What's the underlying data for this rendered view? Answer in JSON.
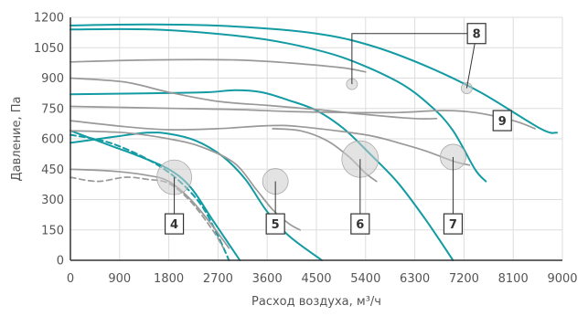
{
  "chart_data": {
    "type": "line",
    "xlabel": "Расход воздуха, м³/ч",
    "ylabel": "Давление, Па",
    "xlim": [
      0,
      9000
    ],
    "ylim": [
      0,
      1200
    ],
    "x_ticks": [
      "0",
      "900",
      "1800",
      "2700",
      "3600",
      "4500",
      "5400",
      "6300",
      "7200",
      "8100",
      "9000"
    ],
    "y_ticks": [
      "0",
      "150",
      "300",
      "450",
      "600",
      "750",
      "900",
      "1050",
      "1200"
    ],
    "grid": true,
    "colors": {
      "teal": "#139ba3",
      "gray": "#999999",
      "grid": "#dddddd",
      "axis": "#333333",
      "bubble": "#cccccc"
    },
    "series": [
      {
        "style": "teal",
        "points": [
          [
            0,
            1160
          ],
          [
            1500,
            1165
          ],
          [
            3000,
            1155
          ],
          [
            4500,
            1120
          ],
          [
            5500,
            1060
          ],
          [
            6500,
            960
          ],
          [
            7500,
            830
          ],
          [
            8600,
            650
          ],
          [
            8900,
            630
          ]
        ]
      },
      {
        "style": "teal",
        "points": [
          [
            0,
            1140
          ],
          [
            1500,
            1140
          ],
          [
            3000,
            1110
          ],
          [
            4000,
            1070
          ],
          [
            5000,
            1000
          ],
          [
            6000,
            880
          ],
          [
            6600,
            760
          ],
          [
            7000,
            640
          ],
          [
            7400,
            450
          ],
          [
            7600,
            390
          ]
        ]
      },
      {
        "style": "teal",
        "points": [
          [
            0,
            820
          ],
          [
            1500,
            825
          ],
          [
            2500,
            830
          ],
          [
            3000,
            840
          ],
          [
            3500,
            830
          ],
          [
            4000,
            790
          ],
          [
            4500,
            740
          ],
          [
            5000,
            650
          ],
          [
            5500,
            520
          ],
          [
            6000,
            380
          ],
          [
            6500,
            200
          ],
          [
            7000,
            0
          ]
        ]
      },
      {
        "style": "teal",
        "points": [
          [
            0,
            580
          ],
          [
            800,
            610
          ],
          [
            1400,
            630
          ],
          [
            1800,
            625
          ],
          [
            2300,
            590
          ],
          [
            2800,
            510
          ],
          [
            3200,
            400
          ],
          [
            3600,
            240
          ],
          [
            4000,
            120
          ],
          [
            4600,
            0
          ]
        ]
      },
      {
        "style": "teal",
        "points": [
          [
            0,
            640
          ],
          [
            300,
            610
          ],
          [
            800,
            560
          ],
          [
            1200,
            520
          ],
          [
            1800,
            450
          ],
          [
            2200,
            360
          ],
          [
            2600,
            200
          ],
          [
            3100,
            0
          ]
        ]
      },
      {
        "style": "teal",
        "dashed": true,
        "points": [
          [
            0,
            620
          ],
          [
            600,
            590
          ],
          [
            1100,
            540
          ],
          [
            1600,
            470
          ],
          [
            2000,
            390
          ],
          [
            2400,
            270
          ],
          [
            2700,
            120
          ],
          [
            2900,
            0
          ]
        ]
      },
      {
        "style": "gray",
        "points": [
          [
            0,
            980
          ],
          [
            1500,
            990
          ],
          [
            3000,
            990
          ],
          [
            4000,
            975
          ],
          [
            5000,
            950
          ],
          [
            5400,
            930
          ]
        ]
      },
      {
        "style": "gray",
        "points": [
          [
            0,
            900
          ],
          [
            1000,
            880
          ],
          [
            1800,
            830
          ],
          [
            2700,
            785
          ],
          [
            3600,
            765
          ],
          [
            4500,
            745
          ],
          [
            5400,
            720
          ],
          [
            6300,
            700
          ],
          [
            6700,
            700
          ]
        ]
      },
      {
        "style": "gray",
        "points": [
          [
            0,
            760
          ],
          [
            1000,
            755
          ],
          [
            2000,
            750
          ],
          [
            3000,
            745
          ],
          [
            4000,
            735
          ],
          [
            5000,
            730
          ],
          [
            6000,
            730
          ],
          [
            6800,
            740
          ],
          [
            7400,
            730
          ],
          [
            8100,
            690
          ],
          [
            8500,
            650
          ]
        ]
      },
      {
        "style": "gray",
        "points": [
          [
            0,
            690
          ],
          [
            1000,
            660
          ],
          [
            1800,
            645
          ],
          [
            2700,
            650
          ],
          [
            3600,
            665
          ],
          [
            4200,
            660
          ],
          [
            5400,
            620
          ],
          [
            6000,
            580
          ],
          [
            6500,
            540
          ],
          [
            7000,
            490
          ],
          [
            7300,
            470
          ]
        ]
      },
      {
        "style": "gray",
        "points": [
          [
            0,
            640
          ],
          [
            1000,
            630
          ],
          [
            1800,
            600
          ],
          [
            2400,
            560
          ],
          [
            3000,
            480
          ],
          [
            3400,
            350
          ],
          [
            3700,
            250
          ],
          [
            4000,
            180
          ],
          [
            4200,
            150
          ]
        ]
      },
      {
        "style": "gray",
        "points": [
          [
            0,
            450
          ],
          [
            800,
            440
          ],
          [
            1400,
            420
          ],
          [
            1800,
            390
          ],
          [
            2200,
            300
          ],
          [
            2600,
            170
          ],
          [
            2900,
            60
          ]
        ]
      },
      {
        "style": "gray",
        "dashed": true,
        "points": [
          [
            0,
            410
          ],
          [
            500,
            390
          ],
          [
            1000,
            410
          ],
          [
            1400,
            400
          ],
          [
            1800,
            380
          ],
          [
            2200,
            290
          ],
          [
            2600,
            150
          ],
          [
            2800,
            60
          ]
        ]
      },
      {
        "style": "gray",
        "points": [
          [
            3700,
            650
          ],
          [
            4200,
            640
          ],
          [
            4700,
            590
          ],
          [
            5100,
            510
          ],
          [
            5400,
            430
          ],
          [
            5600,
            390
          ]
        ]
      }
    ],
    "bubbles": [
      {
        "x": 1900,
        "y": 410,
        "r": 19
      },
      {
        "x": 3750,
        "y": 390,
        "r": 14
      },
      {
        "x": 5300,
        "y": 500,
        "r": 20
      },
      {
        "x": 7000,
        "y": 510,
        "r": 14
      },
      {
        "x": 5150,
        "y": 870,
        "r": 6
      },
      {
        "x": 7250,
        "y": 850,
        "r": 6
      }
    ],
    "labels": [
      {
        "text": "4",
        "x": 1900,
        "y": 180,
        "target": [
          1900,
          410
        ]
      },
      {
        "text": "5",
        "x": 3750,
        "y": 180,
        "target": [
          3750,
          390
        ]
      },
      {
        "text": "6",
        "x": 5300,
        "y": 180,
        "target": [
          5300,
          500
        ]
      },
      {
        "text": "7",
        "x": 7000,
        "y": 180,
        "target": [
          7000,
          510
        ]
      },
      {
        "text": "8",
        "x": 7430,
        "y": 1120,
        "corner": [
          5150,
          1120
        ],
        "target": [
          5150,
          870
        ]
      },
      {
        "text": "9",
        "x": 7900,
        "y": 690
      }
    ]
  }
}
